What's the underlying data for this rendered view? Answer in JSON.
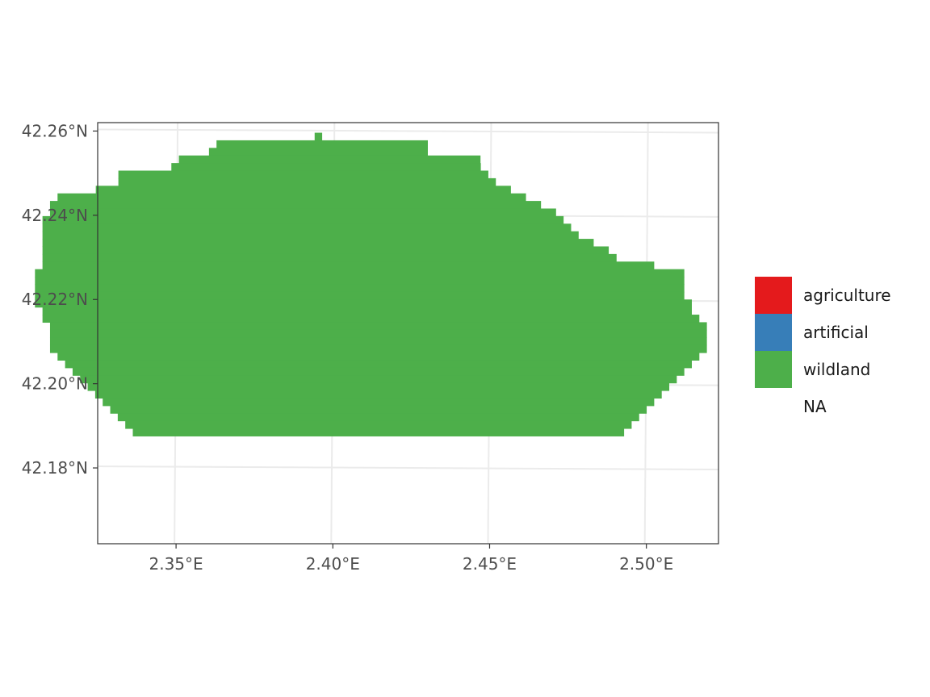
{
  "chart_data": {
    "type": "heatmap",
    "title": "",
    "xlabel": "",
    "ylabel": "",
    "xlim": [
      2.325,
      2.523
    ],
    "ylim": [
      42.162,
      42.262
    ],
    "grid": true,
    "legend_placement": "right",
    "x_ticks": [
      {
        "value": 2.35,
        "label": "2.35°E"
      },
      {
        "value": 2.4,
        "label": "2.40°E"
      },
      {
        "value": 2.45,
        "label": "2.45°E"
      },
      {
        "value": 2.5,
        "label": "2.50°E"
      }
    ],
    "y_ticks": [
      {
        "value": 42.26,
        "label": "42.26°N"
      },
      {
        "value": 42.24,
        "label": "42.24°N"
      },
      {
        "value": 42.22,
        "label": "42.22°N"
      },
      {
        "value": 42.2,
        "label": "42.20°N"
      },
      {
        "value": 42.18,
        "label": "42.18°N"
      }
    ],
    "legend": [
      {
        "label": "agriculture",
        "color": "#e41a1c"
      },
      {
        "label": "artificial",
        "color": "#377eb8"
      },
      {
        "label": "wildland",
        "color": "#4daf4a"
      },
      {
        "label": "NA",
        "color": ""
      }
    ],
    "wildland_rows": [
      {
        "y": 42.2587,
        "x": [
          [
            2.3942,
            2.3966
          ]
        ]
      },
      {
        "y": 42.2569,
        "x": [
          [
            2.3629,
            2.4303
          ]
        ]
      },
      {
        "y": 42.2551,
        "x": [
          [
            2.3605,
            2.4303
          ]
        ]
      },
      {
        "y": 42.2533,
        "x": [
          [
            2.3509,
            2.4471
          ]
        ]
      },
      {
        "y": 42.2515,
        "x": [
          [
            2.3485,
            2.4472
          ]
        ]
      },
      {
        "y": 42.2497,
        "x": [
          [
            2.3316,
            2.4496
          ]
        ]
      },
      {
        "y": 42.2479,
        "x": [
          [
            2.3316,
            2.452
          ]
        ]
      },
      {
        "y": 42.2461,
        "x": [
          [
            2.3244,
            2.4568
          ]
        ]
      },
      {
        "y": 42.2443,
        "x": [
          [
            2.3122,
            2.4616
          ]
        ]
      },
      {
        "y": 42.2425,
        "x": [
          [
            2.3098,
            2.4664
          ]
        ]
      },
      {
        "y": 42.2407,
        "x": [
          [
            2.3098,
            2.4712
          ]
        ]
      },
      {
        "y": 42.2389,
        "x": [
          [
            2.3074,
            2.4736
          ]
        ]
      },
      {
        "y": 42.2371,
        "x": [
          [
            2.3074,
            2.476
          ]
        ]
      },
      {
        "y": 42.2353,
        "x": [
          [
            2.3074,
            2.4784
          ]
        ]
      },
      {
        "y": 42.2335,
        "x": [
          [
            2.3074,
            2.4832
          ]
        ]
      },
      {
        "y": 42.2317,
        "x": [
          [
            2.3074,
            2.488
          ]
        ]
      },
      {
        "y": 42.2299,
        "x": [
          [
            2.3074,
            2.4905
          ]
        ]
      },
      {
        "y": 42.2281,
        "x": [
          [
            2.3074,
            2.5025
          ]
        ]
      },
      {
        "y": 42.2263,
        "x": [
          [
            2.305,
            2.5121
          ]
        ]
      },
      {
        "y": 42.2245,
        "x": [
          [
            2.305,
            2.5121
          ]
        ]
      },
      {
        "y": 42.2227,
        "x": [
          [
            2.305,
            2.5121
          ]
        ]
      },
      {
        "y": 42.2209,
        "x": [
          [
            2.305,
            2.5121
          ]
        ]
      },
      {
        "y": 42.2191,
        "x": [
          [
            2.305,
            2.5145
          ]
        ]
      },
      {
        "y": 42.2173,
        "x": [
          [
            2.3074,
            2.5145
          ]
        ]
      },
      {
        "y": 42.2155,
        "x": [
          [
            2.3074,
            2.5169
          ]
        ]
      },
      {
        "y": 42.2137,
        "x": [
          [
            2.3098,
            2.5193
          ]
        ]
      },
      {
        "y": 42.2119,
        "x": [
          [
            2.3098,
            2.5193
          ]
        ]
      },
      {
        "y": 42.2101,
        "x": [
          [
            2.3098,
            2.5193
          ]
        ]
      },
      {
        "y": 42.2083,
        "x": [
          [
            2.3098,
            2.5193
          ]
        ]
      },
      {
        "y": 42.2065,
        "x": [
          [
            2.3122,
            2.5169
          ]
        ]
      },
      {
        "y": 42.2047,
        "x": [
          [
            2.3146,
            2.5145
          ]
        ]
      },
      {
        "y": 42.2029,
        "x": [
          [
            2.317,
            2.5121
          ]
        ]
      },
      {
        "y": 42.2011,
        "x": [
          [
            2.3194,
            2.5097
          ]
        ]
      },
      {
        "y": 42.1993,
        "x": [
          [
            2.3218,
            2.5073
          ]
        ]
      },
      {
        "y": 42.1975,
        "x": [
          [
            2.3242,
            2.5049
          ]
        ]
      },
      {
        "y": 42.1957,
        "x": [
          [
            2.3266,
            2.5025
          ]
        ]
      },
      {
        "y": 42.1939,
        "x": [
          [
            2.329,
            2.5001
          ]
        ]
      },
      {
        "y": 42.1921,
        "x": [
          [
            2.3314,
            2.4977
          ]
        ]
      },
      {
        "y": 42.1903,
        "x": [
          [
            2.3338,
            2.4953
          ]
        ]
      },
      {
        "y": 42.1885,
        "x": [
          [
            2.3362,
            2.4929
          ]
        ]
      }
    ]
  }
}
